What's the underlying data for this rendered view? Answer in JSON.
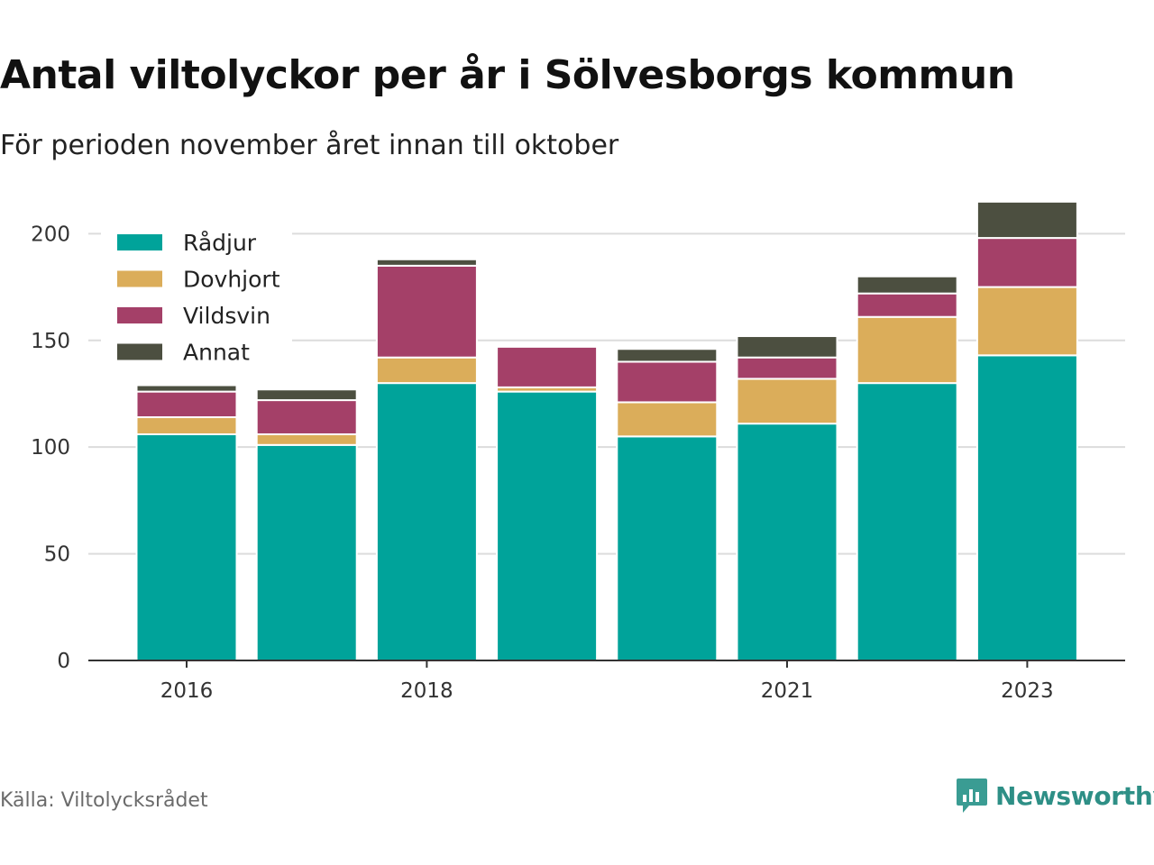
{
  "header": {
    "title": "Antal viltolyckor per år i Sölvesborgs kommun",
    "subtitle": "För perioden november året innan till oktober"
  },
  "footer": {
    "source": "Källa: Viltolycksrådet",
    "brand": "Newsworthy"
  },
  "chart_data": {
    "type": "bar",
    "stacked": true,
    "categories": [
      "2016",
      "2017",
      "2018",
      "2019",
      "2020",
      "2021",
      "2022",
      "2023"
    ],
    "x_tick_labels": [
      "2016",
      "",
      "2018",
      "",
      "",
      "2021",
      "",
      "2023"
    ],
    "series": [
      {
        "name": "Rådjur",
        "color": "#00a39a",
        "values": [
          106,
          101,
          130,
          126,
          105,
          111,
          130,
          143
        ]
      },
      {
        "name": "Dovhjort",
        "color": "#dbad5a",
        "values": [
          8,
          5,
          12,
          2,
          16,
          21,
          31,
          32
        ]
      },
      {
        "name": "Vildsvin",
        "color": "#a44068",
        "values": [
          12,
          16,
          43,
          19,
          19,
          10,
          11,
          23
        ]
      },
      {
        "name": "Annat",
        "color": "#4c4f40",
        "values": [
          3,
          5,
          3,
          0,
          6,
          10,
          8,
          17
        ]
      }
    ],
    "ylim": [
      0,
      220
    ],
    "yticks": [
      0,
      50,
      100,
      150,
      200
    ],
    "grid": true,
    "legend_position": "top-left"
  }
}
